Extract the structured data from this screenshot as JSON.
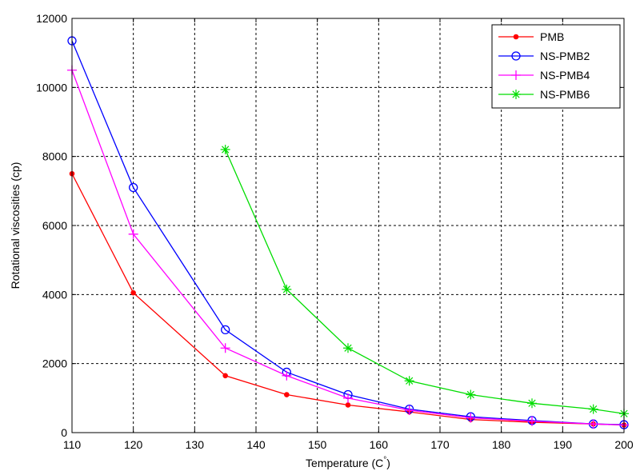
{
  "chart_data": {
    "type": "line",
    "title": "",
    "xlabel": "Temperature (C",
    "xlabel_sup": "°",
    "xlabel_close": ")",
    "ylabel": "Rotational viscosities (cp)",
    "xlim": [
      110,
      200
    ],
    "ylim": [
      0,
      12000
    ],
    "xticks": [
      110,
      120,
      130,
      140,
      150,
      160,
      170,
      180,
      190,
      200
    ],
    "yticks": [
      0,
      2000,
      4000,
      6000,
      8000,
      10000,
      12000
    ],
    "grid": true,
    "legend_position": "top-right",
    "series": [
      {
        "name": "PMB",
        "color": "#ff0000",
        "marker": "dot",
        "x": [
          110,
          120,
          135,
          145,
          155,
          165,
          175,
          185,
          195,
          200
        ],
        "y": [
          7500,
          4050,
          1650,
          1100,
          800,
          600,
          380,
          300,
          250,
          220
        ]
      },
      {
        "name": "NS-PMB2",
        "color": "#0000ff",
        "marker": "circle",
        "x": [
          110,
          120,
          135,
          145,
          155,
          165,
          175,
          185,
          195,
          200
        ],
        "y": [
          11350,
          7100,
          2980,
          1750,
          1100,
          680,
          460,
          350,
          250,
          230
        ]
      },
      {
        "name": "NS-PMB4",
        "color": "#ff00ff",
        "marker": "plus",
        "x": [
          110,
          120,
          135,
          145,
          155,
          165,
          175,
          185,
          195,
          200
        ],
        "y": [
          10500,
          5750,
          2450,
          1650,
          1000,
          650,
          430,
          330,
          250,
          220
        ]
      },
      {
        "name": "NS-PMB6",
        "color": "#00dd00",
        "marker": "star",
        "x": [
          135,
          145,
          155,
          165,
          175,
          185,
          195,
          200
        ],
        "y": [
          8200,
          4150,
          2450,
          1500,
          1100,
          850,
          680,
          550
        ]
      }
    ]
  }
}
